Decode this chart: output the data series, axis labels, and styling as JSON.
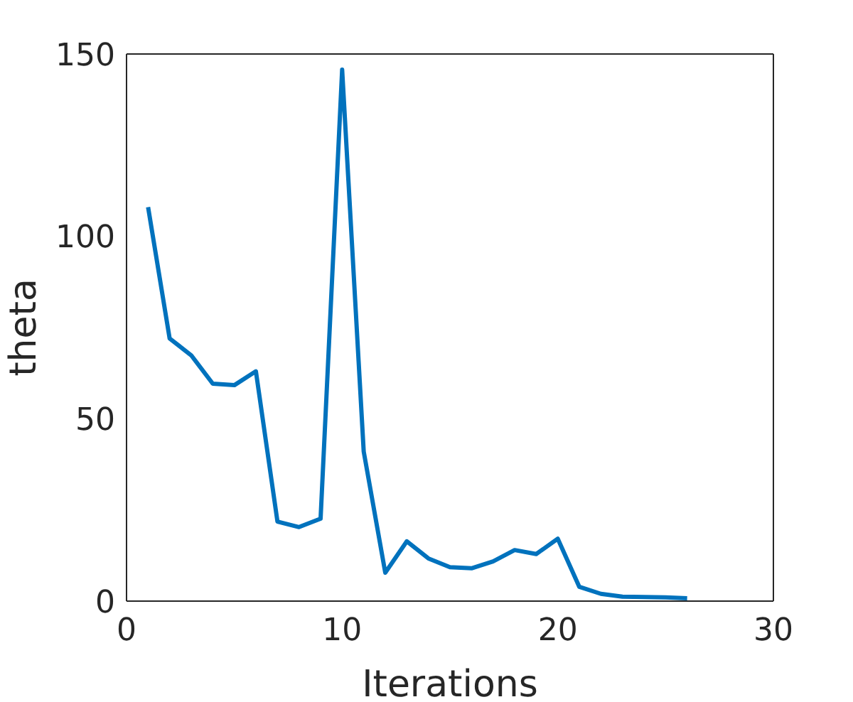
{
  "chart_data": {
    "type": "line",
    "xlabel": "Iterations",
    "ylabel": "theta",
    "x": [
      1,
      2,
      3,
      4,
      5,
      6,
      7,
      8,
      9,
      10,
      11,
      12,
      13,
      14,
      15,
      16,
      17,
      18,
      19,
      20,
      21,
      22,
      23,
      24,
      25,
      26
    ],
    "series": [
      {
        "color": "#0072bd",
        "values": [
          108,
          72,
          67.4,
          59.6,
          59.2,
          63,
          21.8,
          20.3,
          22.6,
          145.7,
          41,
          7.8,
          16.4,
          11.7,
          9.3,
          9,
          10.9,
          14,
          12.9,
          17.1,
          3.9,
          2,
          1.2,
          1.1,
          1,
          0.8
        ]
      }
    ],
    "xlim": [
      0,
      30
    ],
    "xticks": [
      0,
      10,
      20,
      30
    ],
    "ylim": [
      0,
      150
    ],
    "yticks": [
      0,
      50,
      100,
      150
    ],
    "grid": false,
    "legend": false,
    "marker": "none",
    "line_style": "solid"
  }
}
